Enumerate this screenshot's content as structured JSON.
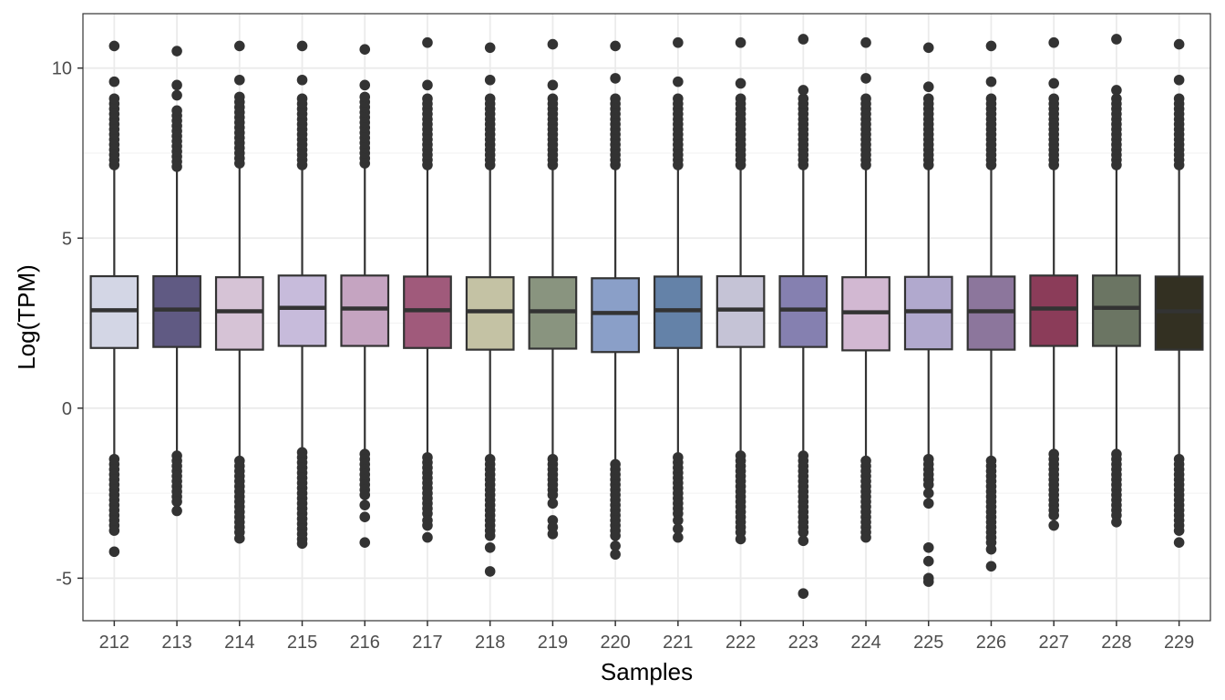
{
  "chart_data": {
    "type": "boxplot",
    "title": "",
    "xlabel": "Samples",
    "ylabel": "Log(TPM)",
    "ylim": [
      -6.25,
      11.6
    ],
    "yticks": [
      -5,
      0,
      5,
      10
    ],
    "ytick_labels": [
      "-5",
      "0",
      "5",
      "10"
    ],
    "grid": true,
    "categories": [
      "212",
      "213",
      "214",
      "215",
      "216",
      "217",
      "218",
      "219",
      "220",
      "221",
      "222",
      "223",
      "224",
      "225",
      "226",
      "227",
      "228",
      "229"
    ],
    "colors": [
      "#d3d6e5",
      "#605a83",
      "#d6c3d6",
      "#c7bbdb",
      "#c5a4c1",
      "#a05a7b",
      "#c4c2a4",
      "#89947f",
      "#8a9fc8",
      "#6482a8",
      "#c5c3d6",
      "#8580b0",
      "#d2b8d2",
      "#b1a9ce",
      "#8c769c",
      "#8b3c59",
      "#6b7563",
      "#333022"
    ],
    "boxes": [
      {
        "sample": "212",
        "q1": 1.77,
        "median": 2.88,
        "q3": 3.88,
        "whisker_low": -1.4,
        "whisker_high": 7.05,
        "outliers_low": [
          -1.5,
          -1.65,
          -1.8,
          -1.95,
          -2.1,
          -2.25,
          -2.4,
          -2.55,
          -2.7,
          -2.85,
          -3.0,
          -3.15,
          -3.3,
          -3.45,
          -3.6,
          -4.22
        ],
        "outliers_high": [
          7.15,
          7.3,
          7.45,
          7.6,
          7.75,
          7.9,
          8.05,
          8.2,
          8.35,
          8.5,
          8.65,
          8.8,
          8.95,
          9.1,
          9.6,
          10.65
        ]
      },
      {
        "sample": "213",
        "q1": 1.8,
        "median": 2.9,
        "q3": 3.88,
        "whisker_low": -1.3,
        "whisker_high": 7.0,
        "outliers_low": [
          -1.4,
          -1.55,
          -1.7,
          -1.85,
          -2.0,
          -2.15,
          -2.3,
          -2.45,
          -2.6,
          -2.75,
          -3.02
        ],
        "outliers_high": [
          7.1,
          7.25,
          7.4,
          7.55,
          7.7,
          7.85,
          8.0,
          8.15,
          8.3,
          8.45,
          8.6,
          8.75,
          9.2,
          9.5,
          10.5
        ]
      },
      {
        "sample": "214",
        "q1": 1.72,
        "median": 2.85,
        "q3": 3.85,
        "whisker_low": -1.45,
        "whisker_high": 7.1,
        "outliers_low": [
          -1.55,
          -1.7,
          -1.85,
          -2.0,
          -2.15,
          -2.3,
          -2.45,
          -2.6,
          -2.75,
          -2.9,
          -3.05,
          -3.2,
          -3.35,
          -3.5,
          -3.65,
          -3.83
        ],
        "outliers_high": [
          7.2,
          7.35,
          7.5,
          7.65,
          7.8,
          7.95,
          8.1,
          8.25,
          8.4,
          8.55,
          8.7,
          8.85,
          9.0,
          9.15,
          9.65,
          10.65
        ]
      },
      {
        "sample": "215",
        "q1": 1.83,
        "median": 2.95,
        "q3": 3.9,
        "whisker_low": -1.2,
        "whisker_high": 7.05,
        "outliers_low": [
          -1.3,
          -1.45,
          -1.6,
          -1.75,
          -1.9,
          -2.05,
          -2.2,
          -2.35,
          -2.5,
          -2.65,
          -2.8,
          -2.95,
          -3.1,
          -3.25,
          -3.4,
          -3.55,
          -3.7,
          -3.85,
          -3.98
        ],
        "outliers_high": [
          7.15,
          7.3,
          7.45,
          7.6,
          7.75,
          7.9,
          8.05,
          8.2,
          8.35,
          8.5,
          8.65,
          8.8,
          8.95,
          9.1,
          9.65,
          10.65
        ]
      },
      {
        "sample": "216",
        "q1": 1.83,
        "median": 2.93,
        "q3": 3.9,
        "whisker_low": -1.25,
        "whisker_high": 7.1,
        "outliers_low": [
          -1.35,
          -1.5,
          -1.65,
          -1.8,
          -1.95,
          -2.1,
          -2.25,
          -2.4,
          -2.55,
          -2.85,
          -3.2,
          -3.95
        ],
        "outliers_high": [
          7.2,
          7.35,
          7.5,
          7.65,
          7.8,
          7.95,
          8.1,
          8.25,
          8.4,
          8.55,
          8.7,
          8.85,
          9.0,
          9.15,
          9.5,
          10.55
        ]
      },
      {
        "sample": "217",
        "q1": 1.77,
        "median": 2.88,
        "q3": 3.87,
        "whisker_low": -1.35,
        "whisker_high": 7.05,
        "outliers_low": [
          -1.45,
          -1.6,
          -1.75,
          -1.9,
          -2.05,
          -2.2,
          -2.35,
          -2.5,
          -2.65,
          -2.8,
          -2.95,
          -3.1,
          -3.3,
          -3.45,
          -3.8
        ],
        "outliers_high": [
          7.15,
          7.3,
          7.45,
          7.6,
          7.75,
          7.9,
          8.05,
          8.2,
          8.35,
          8.5,
          8.65,
          8.8,
          8.95,
          9.1,
          9.5,
          10.75
        ]
      },
      {
        "sample": "218",
        "q1": 1.72,
        "median": 2.85,
        "q3": 3.85,
        "whisker_low": -1.4,
        "whisker_high": 7.05,
        "outliers_low": [
          -1.5,
          -1.65,
          -1.8,
          -1.95,
          -2.1,
          -2.25,
          -2.4,
          -2.55,
          -2.7,
          -2.85,
          -3.0,
          -3.15,
          -3.3,
          -3.45,
          -3.6,
          -3.75,
          -4.1,
          -4.8
        ],
        "outliers_high": [
          7.15,
          7.3,
          7.45,
          7.6,
          7.75,
          7.9,
          8.05,
          8.2,
          8.35,
          8.5,
          8.65,
          8.8,
          8.95,
          9.1,
          9.65,
          10.6
        ]
      },
      {
        "sample": "219",
        "q1": 1.75,
        "median": 2.85,
        "q3": 3.85,
        "whisker_low": -1.4,
        "whisker_high": 7.05,
        "outliers_low": [
          -1.5,
          -1.65,
          -1.8,
          -1.95,
          -2.1,
          -2.25,
          -2.4,
          -2.55,
          -2.8,
          -3.3,
          -3.5,
          -3.7
        ],
        "outliers_high": [
          7.15,
          7.3,
          7.45,
          7.6,
          7.75,
          7.9,
          8.05,
          8.2,
          8.35,
          8.5,
          8.65,
          8.8,
          8.95,
          9.1,
          9.5,
          10.7
        ]
      },
      {
        "sample": "220",
        "q1": 1.65,
        "median": 2.8,
        "q3": 3.82,
        "whisker_low": -1.55,
        "whisker_high": 7.05,
        "outliers_low": [
          -1.65,
          -1.8,
          -1.95,
          -2.1,
          -2.25,
          -2.4,
          -2.55,
          -2.7,
          -2.85,
          -3.0,
          -3.15,
          -3.3,
          -3.45,
          -3.6,
          -3.75,
          -4.05,
          -4.3
        ],
        "outliers_high": [
          7.15,
          7.3,
          7.45,
          7.6,
          7.75,
          7.9,
          8.05,
          8.2,
          8.35,
          8.5,
          8.65,
          8.8,
          8.95,
          9.1,
          9.7,
          10.65
        ]
      },
      {
        "sample": "221",
        "q1": 1.77,
        "median": 2.88,
        "q3": 3.87,
        "whisker_low": -1.35,
        "whisker_high": 7.05,
        "outliers_low": [
          -1.45,
          -1.6,
          -1.75,
          -1.9,
          -2.05,
          -2.2,
          -2.35,
          -2.5,
          -2.65,
          -2.8,
          -2.95,
          -3.1,
          -3.3,
          -3.55,
          -3.8
        ],
        "outliers_high": [
          7.15,
          7.3,
          7.45,
          7.6,
          7.75,
          7.9,
          8.05,
          8.2,
          8.35,
          8.5,
          8.65,
          8.8,
          8.95,
          9.1,
          9.6,
          10.75
        ]
      },
      {
        "sample": "222",
        "q1": 1.8,
        "median": 2.9,
        "q3": 3.88,
        "whisker_low": -1.3,
        "whisker_high": 7.05,
        "outliers_low": [
          -1.4,
          -1.55,
          -1.7,
          -1.85,
          -2.0,
          -2.15,
          -2.3,
          -2.45,
          -2.6,
          -2.75,
          -2.9,
          -3.05,
          -3.2,
          -3.35,
          -3.5,
          -3.65,
          -3.85
        ],
        "outliers_high": [
          7.15,
          7.3,
          7.45,
          7.6,
          7.75,
          7.9,
          8.05,
          8.2,
          8.35,
          8.5,
          8.65,
          8.8,
          8.95,
          9.1,
          9.55,
          10.75
        ]
      },
      {
        "sample": "223",
        "q1": 1.8,
        "median": 2.9,
        "q3": 3.88,
        "whisker_low": -1.3,
        "whisker_high": 7.05,
        "outliers_low": [
          -1.4,
          -1.55,
          -1.7,
          -1.85,
          -2.0,
          -2.15,
          -2.3,
          -2.45,
          -2.6,
          -2.75,
          -2.9,
          -3.05,
          -3.2,
          -3.35,
          -3.5,
          -3.65,
          -3.9,
          -5.45
        ],
        "outliers_high": [
          7.15,
          7.3,
          7.45,
          7.6,
          7.75,
          7.9,
          8.05,
          8.2,
          8.35,
          8.5,
          8.65,
          8.8,
          8.95,
          9.1,
          9.35,
          10.85
        ]
      },
      {
        "sample": "224",
        "q1": 1.7,
        "median": 2.82,
        "q3": 3.85,
        "whisker_low": -1.45,
        "whisker_high": 7.05,
        "outliers_low": [
          -1.55,
          -1.7,
          -1.85,
          -2.0,
          -2.15,
          -2.3,
          -2.45,
          -2.6,
          -2.75,
          -2.9,
          -3.05,
          -3.2,
          -3.35,
          -3.5,
          -3.65,
          -3.8
        ],
        "outliers_high": [
          7.15,
          7.3,
          7.45,
          7.6,
          7.75,
          7.9,
          8.05,
          8.2,
          8.35,
          8.5,
          8.65,
          8.8,
          8.95,
          9.1,
          9.7,
          10.75
        ]
      },
      {
        "sample": "225",
        "q1": 1.73,
        "median": 2.85,
        "q3": 3.86,
        "whisker_low": -1.4,
        "whisker_high": 7.05,
        "outliers_low": [
          -1.5,
          -1.65,
          -1.8,
          -1.95,
          -2.1,
          -2.25,
          -2.5,
          -2.8,
          -4.1,
          -4.5,
          -5.0,
          -5.1
        ],
        "outliers_high": [
          7.15,
          7.3,
          7.45,
          7.6,
          7.75,
          7.9,
          8.05,
          8.2,
          8.35,
          8.5,
          8.65,
          8.8,
          8.95,
          9.1,
          9.45,
          10.6
        ]
      },
      {
        "sample": "226",
        "q1": 1.72,
        "median": 2.85,
        "q3": 3.87,
        "whisker_low": -1.45,
        "whisker_high": 7.05,
        "outliers_low": [
          -1.55,
          -1.7,
          -1.85,
          -2.0,
          -2.15,
          -2.3,
          -2.45,
          -2.6,
          -2.75,
          -2.9,
          -3.05,
          -3.2,
          -3.35,
          -3.5,
          -3.65,
          -3.8,
          -3.95,
          -4.15,
          -4.65
        ],
        "outliers_high": [
          7.15,
          7.3,
          7.45,
          7.6,
          7.75,
          7.9,
          8.05,
          8.2,
          8.35,
          8.5,
          8.65,
          8.8,
          8.95,
          9.1,
          9.6,
          10.65
        ]
      },
      {
        "sample": "227",
        "q1": 1.83,
        "median": 2.93,
        "q3": 3.9,
        "whisker_low": -1.25,
        "whisker_high": 7.05,
        "outliers_low": [
          -1.35,
          -1.5,
          -1.65,
          -1.8,
          -1.95,
          -2.1,
          -2.25,
          -2.4,
          -2.55,
          -2.7,
          -2.85,
          -3.0,
          -3.15,
          -3.45
        ],
        "outliers_high": [
          7.15,
          7.3,
          7.45,
          7.6,
          7.75,
          7.9,
          8.05,
          8.2,
          8.35,
          8.5,
          8.65,
          8.8,
          8.95,
          9.1,
          9.55,
          10.75
        ]
      },
      {
        "sample": "228",
        "q1": 1.83,
        "median": 2.95,
        "q3": 3.9,
        "whisker_low": -1.25,
        "whisker_high": 7.05,
        "outliers_low": [
          -1.35,
          -1.5,
          -1.65,
          -1.8,
          -1.95,
          -2.1,
          -2.25,
          -2.4,
          -2.55,
          -2.7,
          -2.85,
          -3.0,
          -3.15,
          -3.35
        ],
        "outliers_high": [
          7.15,
          7.3,
          7.45,
          7.6,
          7.75,
          7.9,
          8.05,
          8.2,
          8.35,
          8.5,
          8.65,
          8.8,
          8.95,
          9.1,
          9.35,
          10.85
        ]
      },
      {
        "sample": "229",
        "q1": 1.72,
        "median": 2.85,
        "q3": 3.87,
        "whisker_low": -1.4,
        "whisker_high": 7.05,
        "outliers_low": [
          -1.5,
          -1.65,
          -1.8,
          -1.95,
          -2.1,
          -2.25,
          -2.4,
          -2.55,
          -2.7,
          -2.85,
          -3.0,
          -3.15,
          -3.3,
          -3.45,
          -3.6,
          -3.95
        ],
        "outliers_high": [
          7.15,
          7.3,
          7.45,
          7.6,
          7.75,
          7.9,
          8.05,
          8.2,
          8.35,
          8.5,
          8.65,
          8.8,
          8.95,
          9.1,
          9.65,
          10.7
        ]
      }
    ]
  }
}
